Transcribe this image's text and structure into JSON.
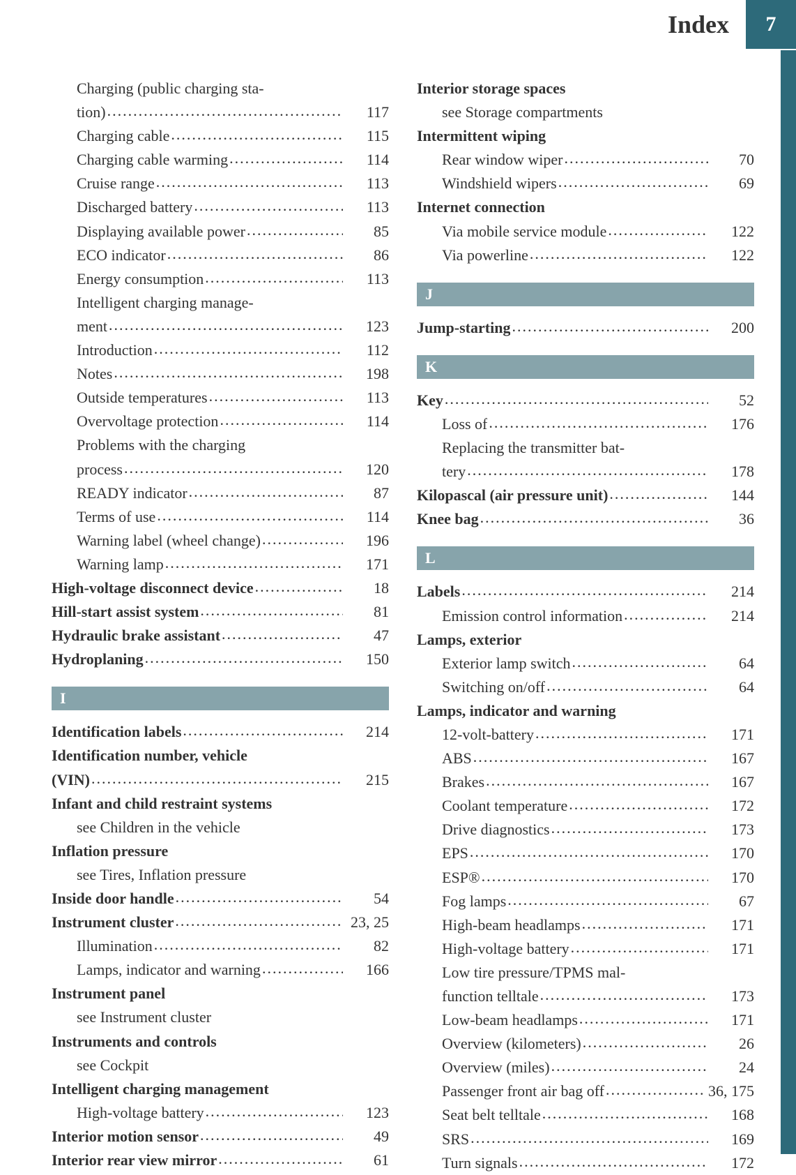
{
  "header": {
    "title": "Index",
    "page": "7"
  },
  "colors": {
    "accent": "#2d6a7a",
    "section_bg": "#87a4ab",
    "text": "#333333",
    "bg": "#ffffff"
  },
  "left_column": [
    {
      "type": "sub",
      "label": "Charging (public charging sta-",
      "page": ""
    },
    {
      "type": "cont",
      "label": "tion)",
      "page": "117"
    },
    {
      "type": "sub",
      "label": "Charging cable",
      "page": "115"
    },
    {
      "type": "sub",
      "label": "Charging cable warming",
      "page": "114"
    },
    {
      "type": "sub",
      "label": "Cruise range",
      "page": "113"
    },
    {
      "type": "sub",
      "label": "Discharged battery",
      "page": "113"
    },
    {
      "type": "sub",
      "label": "Displaying available power",
      "page": "85"
    },
    {
      "type": "sub",
      "label": "ECO indicator",
      "page": "86"
    },
    {
      "type": "sub",
      "label": "Energy consumption",
      "page": "113"
    },
    {
      "type": "sub",
      "label": "Intelligent charging manage-",
      "page": ""
    },
    {
      "type": "cont",
      "label": "ment",
      "page": "123"
    },
    {
      "type": "sub",
      "label": "Introduction",
      "page": "112"
    },
    {
      "type": "sub",
      "label": "Notes",
      "page": "198"
    },
    {
      "type": "sub",
      "label": "Outside temperatures",
      "page": "113"
    },
    {
      "type": "sub",
      "label": "Overvoltage protection",
      "page": "114"
    },
    {
      "type": "sub",
      "label": "Problems with the charging",
      "page": ""
    },
    {
      "type": "cont",
      "label": "process",
      "page": "120"
    },
    {
      "type": "sub",
      "label": "READY indicator",
      "page": "87"
    },
    {
      "type": "sub",
      "label": "Terms of use",
      "page": "114"
    },
    {
      "type": "sub",
      "label": "Warning label (wheel change)",
      "page": "196"
    },
    {
      "type": "sub",
      "label": "Warning lamp",
      "page": "171"
    },
    {
      "type": "bold",
      "label": "High-voltage disconnect device",
      "page": "18"
    },
    {
      "type": "bold",
      "label": "Hill-start assist system",
      "page": "81"
    },
    {
      "type": "bold",
      "label": "Hydraulic brake assistant",
      "page": "47"
    },
    {
      "type": "bold",
      "label": "Hydroplaning",
      "page": "150"
    },
    {
      "type": "letter",
      "label": "I"
    },
    {
      "type": "bold",
      "label": "Identification labels",
      "page": "214"
    },
    {
      "type": "bold-header",
      "label": "Identification number, vehicle"
    },
    {
      "type": "bold",
      "label": "(VIN)",
      "page": "215"
    },
    {
      "type": "bold-header",
      "label": "Infant and child restraint systems"
    },
    {
      "type": "see",
      "label": "see Children in the vehicle"
    },
    {
      "type": "bold-header",
      "label": "Inflation pressure"
    },
    {
      "type": "see",
      "label": "see Tires, Inflation pressure"
    },
    {
      "type": "bold",
      "label": "Inside door handle",
      "page": "54"
    },
    {
      "type": "bold",
      "label": "Instrument cluster",
      "page": "23, 25"
    },
    {
      "type": "sub",
      "label": "Illumination",
      "page": "82"
    },
    {
      "type": "sub",
      "label": "Lamps, indicator and warning",
      "page": "166"
    },
    {
      "type": "bold-header",
      "label": "Instrument panel"
    },
    {
      "type": "see",
      "label": "see Instrument cluster"
    },
    {
      "type": "bold-header",
      "label": "Instruments and controls"
    },
    {
      "type": "see",
      "label": "see Cockpit"
    },
    {
      "type": "bold-header",
      "label": "Intelligent charging management"
    },
    {
      "type": "sub",
      "label": "High-voltage battery",
      "page": "123"
    },
    {
      "type": "bold",
      "label": "Interior motion sensor",
      "page": "49"
    },
    {
      "type": "bold",
      "label": "Interior rear view mirror",
      "page": "61"
    }
  ],
  "right_column": [
    {
      "type": "bold-header",
      "label": "Interior storage spaces"
    },
    {
      "type": "see",
      "label": "see Storage compartments"
    },
    {
      "type": "bold-header",
      "label": "Intermittent wiping"
    },
    {
      "type": "sub",
      "label": "Rear window wiper",
      "page": "70"
    },
    {
      "type": "sub",
      "label": "Windshield wipers",
      "page": "69"
    },
    {
      "type": "bold-header",
      "label": "Internet connection"
    },
    {
      "type": "sub",
      "label": "Via mobile service module",
      "page": "122"
    },
    {
      "type": "sub",
      "label": "Via powerline",
      "page": "122"
    },
    {
      "type": "letter",
      "label": "J"
    },
    {
      "type": "bold",
      "label": "Jump-starting",
      "page": "200"
    },
    {
      "type": "letter",
      "label": "K"
    },
    {
      "type": "bold",
      "label": "Key",
      "page": "52"
    },
    {
      "type": "sub",
      "label": "Loss of",
      "page": "176"
    },
    {
      "type": "sub",
      "label": "Replacing the transmitter bat-",
      "page": ""
    },
    {
      "type": "cont",
      "label": "tery",
      "page": "178"
    },
    {
      "type": "bold",
      "label": "Kilopascal (air pressure unit)",
      "page": "144"
    },
    {
      "type": "bold",
      "label": "Knee bag",
      "page": "36"
    },
    {
      "type": "letter",
      "label": "L"
    },
    {
      "type": "bold",
      "label": "Labels",
      "page": "214"
    },
    {
      "type": "sub",
      "label": "Emission control information",
      "page": "214"
    },
    {
      "type": "bold-header",
      "label": "Lamps, exterior"
    },
    {
      "type": "sub",
      "label": "Exterior lamp switch",
      "page": "64"
    },
    {
      "type": "sub",
      "label": "Switching on/off",
      "page": "64"
    },
    {
      "type": "bold-header",
      "label": "Lamps, indicator and warning"
    },
    {
      "type": "sub",
      "label": "12-volt-battery",
      "page": "171"
    },
    {
      "type": "sub",
      "label": "ABS",
      "page": "167"
    },
    {
      "type": "sub",
      "label": "Brakes",
      "page": "167"
    },
    {
      "type": "sub",
      "label": "Coolant temperature",
      "page": "172"
    },
    {
      "type": "sub",
      "label": "Drive diagnostics",
      "page": "173"
    },
    {
      "type": "sub",
      "label": "EPS",
      "page": "170"
    },
    {
      "type": "sub",
      "label": "ESP®",
      "page": "170"
    },
    {
      "type": "sub",
      "label": "Fog lamps",
      "page": "67"
    },
    {
      "type": "sub",
      "label": "High-beam headlamps",
      "page": "171"
    },
    {
      "type": "sub",
      "label": "High-voltage battery",
      "page": "171"
    },
    {
      "type": "sub",
      "label": "Low tire pressure/TPMS mal-",
      "page": ""
    },
    {
      "type": "cont",
      "label": "function telltale",
      "page": "173"
    },
    {
      "type": "sub",
      "label": "Low-beam headlamps",
      "page": "171"
    },
    {
      "type": "sub",
      "label": "Overview (kilometers)",
      "page": "26"
    },
    {
      "type": "sub",
      "label": "Overview (miles)",
      "page": "24"
    },
    {
      "type": "sub",
      "label": "Passenger front air bag off",
      "page": "36, 175"
    },
    {
      "type": "sub",
      "label": "Seat belt telltale",
      "page": "168"
    },
    {
      "type": "sub",
      "label": "SRS",
      "page": "169"
    },
    {
      "type": "sub",
      "label": "Turn signals",
      "page": "172"
    }
  ]
}
